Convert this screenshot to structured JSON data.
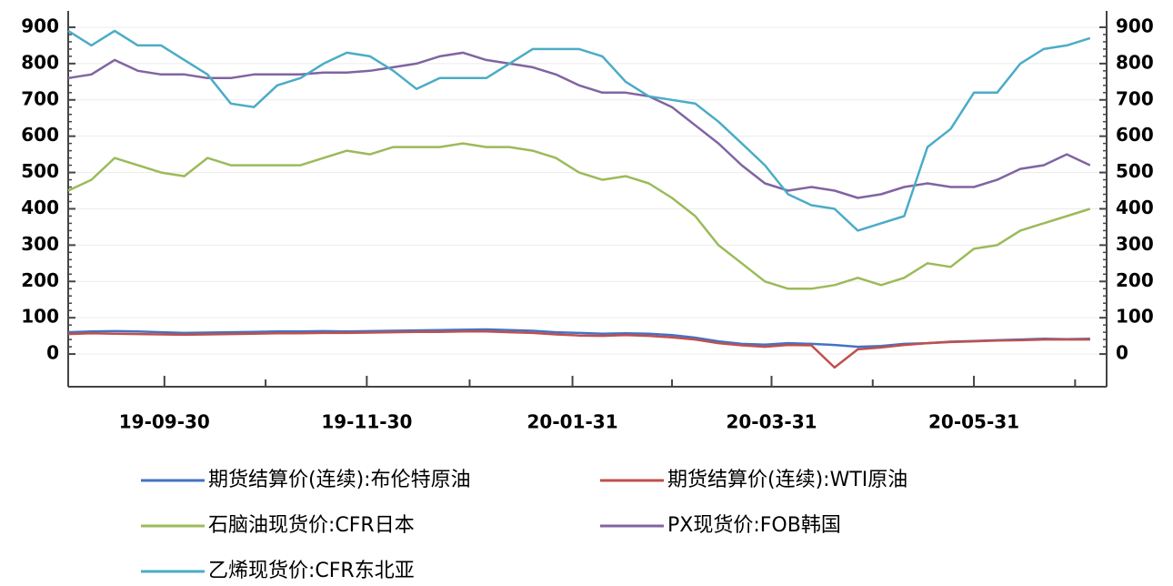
{
  "chart_data": {
    "type": "line",
    "x": [
      "19-09-01",
      "19-09-08",
      "19-09-15",
      "19-09-22",
      "19-09-29",
      "19-10-06",
      "19-10-13",
      "19-10-20",
      "19-10-27",
      "19-11-03",
      "19-11-10",
      "19-11-17",
      "19-11-24",
      "19-12-01",
      "19-12-08",
      "19-12-15",
      "19-12-22",
      "19-12-29",
      "20-01-05",
      "20-01-12",
      "20-01-19",
      "20-01-26",
      "20-02-02",
      "20-02-09",
      "20-02-16",
      "20-02-23",
      "20-03-01",
      "20-03-08",
      "20-03-15",
      "20-03-22",
      "20-03-29",
      "20-04-05",
      "20-04-12",
      "20-04-19",
      "20-04-26",
      "20-05-03",
      "20-05-10",
      "20-05-17",
      "20-05-24",
      "20-05-31",
      "20-06-07",
      "20-06-14",
      "20-06-21",
      "20-06-28",
      "20-07-05"
    ],
    "xlim": [
      "19-09-01",
      "20-07-10"
    ],
    "xticks": [
      "19-09-30",
      "19-11-30",
      "20-01-31",
      "20-03-31",
      "20-05-31"
    ],
    "ylim": [
      -90,
      945
    ],
    "yticks": [
      0,
      100,
      200,
      300,
      400,
      500,
      600,
      700,
      800,
      900
    ],
    "y2lim": [
      -90,
      945
    ],
    "y2ticks": [
      0,
      100,
      200,
      300,
      400,
      500,
      600,
      700,
      800,
      900
    ],
    "grid": true,
    "legend": "bottom",
    "series": [
      {
        "name": "期货结算价(连续):布伦特原油",
        "color": "#4472c4",
        "values": [
          60,
          62,
          63,
          62,
          60,
          58,
          59,
          60,
          61,
          62,
          62,
          63,
          62,
          63,
          64,
          65,
          66,
          67,
          68,
          66,
          64,
          60,
          58,
          56,
          57,
          56,
          52,
          45,
          35,
          28,
          26,
          30,
          28,
          25,
          20,
          22,
          28,
          30,
          34,
          36,
          38,
          40,
          42,
          41,
          42
        ]
      },
      {
        "name": "期货结算价(连续):WTI原油",
        "color": "#c0504d",
        "values": [
          55,
          57,
          56,
          55,
          54,
          53,
          54,
          55,
          56,
          57,
          57,
          58,
          58,
          59,
          60,
          61,
          61,
          62,
          62,
          60,
          58,
          54,
          51,
          50,
          52,
          50,
          46,
          40,
          30,
          24,
          20,
          25,
          24,
          -37,
          13,
          18,
          25,
          30,
          33,
          35,
          37,
          38,
          40,
          40,
          40
        ]
      },
      {
        "name": "石脑油现货价:CFR日本",
        "color": "#9bbb59",
        "values": [
          450,
          480,
          540,
          520,
          500,
          490,
          540,
          520,
          520,
          520,
          520,
          540,
          560,
          550,
          570,
          570,
          570,
          580,
          570,
          570,
          560,
          540,
          500,
          480,
          490,
          470,
          430,
          380,
          300,
          250,
          200,
          180,
          180,
          190,
          210,
          190,
          210,
          250,
          240,
          290,
          300,
          340,
          360,
          380,
          400
        ]
      },
      {
        "name": "PX现货价:FOB韩国",
        "color": "#8064a2",
        "values": [
          760,
          770,
          810,
          780,
          770,
          770,
          760,
          760,
          770,
          770,
          770,
          775,
          775,
          780,
          790,
          800,
          820,
          830,
          810,
          800,
          790,
          770,
          740,
          720,
          720,
          710,
          680,
          630,
          580,
          520,
          470,
          450,
          460,
          450,
          430,
          440,
          460,
          470,
          460,
          460,
          480,
          510,
          520,
          550,
          520
        ]
      },
      {
        "name": "乙烯现货价:CFR东北亚",
        "color": "#4bacc6",
        "values": [
          890,
          850,
          890,
          850,
          850,
          810,
          770,
          690,
          680,
          740,
          760,
          800,
          830,
          820,
          780,
          730,
          760,
          760,
          760,
          800,
          840,
          840,
          840,
          820,
          750,
          710,
          700,
          690,
          640,
          580,
          520,
          440,
          410,
          400,
          340,
          360,
          380,
          570,
          620,
          720,
          720,
          800,
          840,
          850,
          870
        ]
      }
    ]
  }
}
